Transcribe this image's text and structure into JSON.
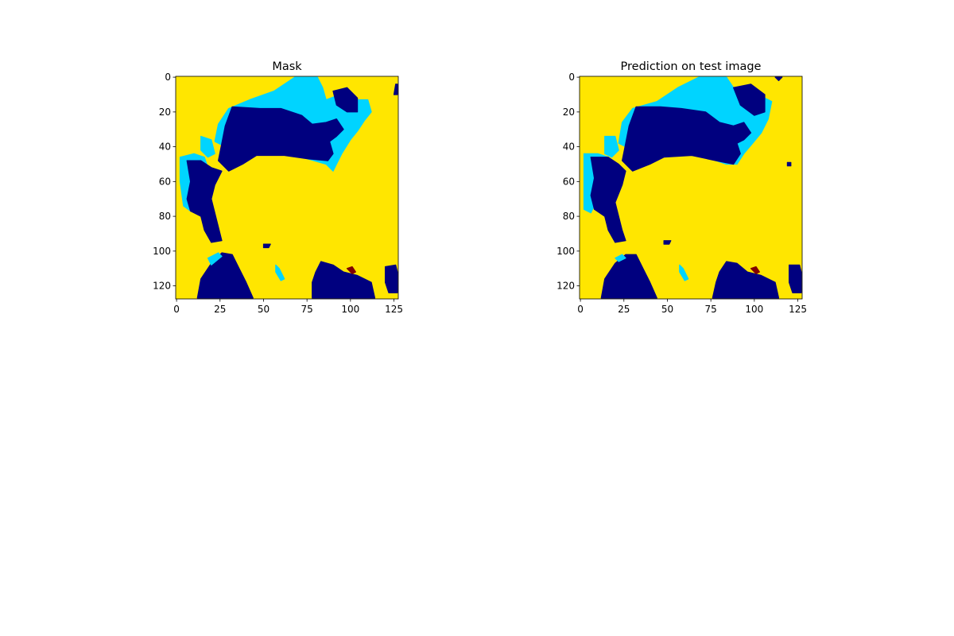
{
  "figure": {
    "background": "#ffffff"
  },
  "colors": {
    "background_class": "#ffe600",
    "water_light": "#00d4ff",
    "water_dark": "#00007f",
    "small_class": "#800000",
    "axes_edge": "#000000"
  },
  "chart_data": [
    {
      "type": "heatmap",
      "title": "Mask",
      "xlabel": "",
      "ylabel": "",
      "xlim": [
        0,
        127
      ],
      "ylim": [
        127,
        0
      ],
      "xticks": [
        0,
        25,
        50,
        75,
        100,
        125
      ],
      "yticks": [
        0,
        20,
        40,
        60,
        80,
        100,
        120
      ],
      "grid": false,
      "colormap": "jet",
      "regions": [
        {
          "class": "light",
          "points": [
            [
              42,
              13
            ],
            [
              56,
              8
            ],
            [
              68,
              0
            ],
            [
              81,
              0
            ],
            [
              84,
              6
            ],
            [
              86,
              13
            ],
            [
              99,
              8
            ],
            [
              104,
              13
            ],
            [
              110,
              13
            ],
            [
              112,
              20
            ],
            [
              108,
              25
            ],
            [
              104,
              31
            ],
            [
              100,
              36
            ],
            [
              95,
              44
            ],
            [
              92,
              50
            ],
            [
              90,
              54
            ],
            [
              86,
              50
            ],
            [
              72,
              46
            ],
            [
              58,
              44
            ],
            [
              41,
              43
            ],
            [
              30,
              41
            ],
            [
              22,
              37
            ],
            [
              24,
              27
            ],
            [
              30,
              18
            ]
          ]
        },
        {
          "class": "dark",
          "points": [
            [
              32,
              17
            ],
            [
              48,
              18
            ],
            [
              60,
              18
            ],
            [
              72,
              22
            ],
            [
              78,
              27
            ],
            [
              86,
              26
            ],
            [
              92,
              24
            ],
            [
              96,
              30
            ],
            [
              92,
              34
            ],
            [
              88,
              37
            ],
            [
              90,
              44
            ],
            [
              87,
              48
            ],
            [
              76,
              47
            ],
            [
              62,
              45
            ],
            [
              46,
              45
            ],
            [
              38,
              50
            ],
            [
              30,
              54
            ],
            [
              24,
              48
            ],
            [
              26,
              38
            ],
            [
              28,
              28
            ]
          ]
        },
        {
          "class": "dark",
          "points": [
            [
              90,
              8
            ],
            [
              98,
              6
            ],
            [
              104,
              12
            ],
            [
              104,
              20
            ],
            [
              98,
              20
            ],
            [
              92,
              16
            ]
          ]
        },
        {
          "class": "dark",
          "points": [
            [
              126,
              4
            ],
            [
              127,
              4
            ],
            [
              127,
              10
            ],
            [
              125,
              10
            ]
          ]
        },
        {
          "class": "light",
          "points": [
            [
              2,
              46
            ],
            [
              10,
              44
            ],
            [
              16,
              46
            ],
            [
              18,
              52
            ],
            [
              14,
              60
            ],
            [
              10,
              68
            ],
            [
              8,
              77
            ],
            [
              4,
              74
            ],
            [
              2,
              60
            ]
          ]
        },
        {
          "class": "light",
          "points": [
            [
              14,
              34
            ],
            [
              20,
              36
            ],
            [
              22,
              44
            ],
            [
              18,
              46
            ],
            [
              14,
              42
            ]
          ]
        },
        {
          "class": "dark",
          "points": [
            [
              6,
              48
            ],
            [
              14,
              48
            ],
            [
              20,
              52
            ],
            [
              26,
              54
            ],
            [
              22,
              62
            ],
            [
              20,
              70
            ],
            [
              22,
              78
            ],
            [
              24,
              86
            ],
            [
              26,
              94
            ],
            [
              20,
              95
            ],
            [
              16,
              88
            ],
            [
              14,
              80
            ],
            [
              8,
              77
            ],
            [
              6,
              70
            ],
            [
              8,
              60
            ]
          ]
        },
        {
          "class": "dark",
          "points": [
            [
              26,
              101
            ],
            [
              32,
              102
            ],
            [
              36,
              110
            ],
            [
              40,
              118
            ],
            [
              44,
              127
            ],
            [
              12,
              127
            ],
            [
              14,
              116
            ],
            [
              20,
              107
            ]
          ]
        },
        {
          "class": "light",
          "points": [
            [
              18,
              104
            ],
            [
              24,
              101
            ],
            [
              26,
              103
            ],
            [
              20,
              108
            ]
          ]
        },
        {
          "class": "dark",
          "points": [
            [
              83,
              106
            ],
            [
              90,
              108
            ],
            [
              96,
              112
            ],
            [
              104,
              114
            ],
            [
              112,
              118
            ],
            [
              114,
              127
            ],
            [
              78,
              127
            ],
            [
              78,
              118
            ],
            [
              80,
              112
            ]
          ]
        },
        {
          "class": "dark",
          "points": [
            [
              120,
              109
            ],
            [
              126,
              108
            ],
            [
              127,
              112
            ],
            [
              127,
              124
            ],
            [
              122,
              124
            ],
            [
              120,
              118
            ]
          ]
        },
        {
          "class": "dark",
          "points": [
            [
              50,
              96
            ],
            [
              54,
              96
            ],
            [
              53,
              98
            ],
            [
              50,
              98
            ]
          ]
        },
        {
          "class": "light",
          "points": [
            [
              57,
              108
            ],
            [
              59,
              110
            ],
            [
              62,
              116
            ],
            [
              60,
              117
            ],
            [
              57,
              112
            ]
          ]
        },
        {
          "class": "small",
          "points": [
            [
              98,
              110
            ],
            [
              101,
              109
            ],
            [
              103,
              112
            ],
            [
              101,
              113
            ]
          ]
        }
      ]
    },
    {
      "type": "heatmap",
      "title": "Prediction on test image",
      "xlabel": "",
      "ylabel": "",
      "xlim": [
        0,
        127
      ],
      "ylim": [
        127,
        0
      ],
      "xticks": [
        0,
        25,
        50,
        75,
        100,
        125
      ],
      "yticks": [
        0,
        20,
        40,
        60,
        80,
        100,
        120
      ],
      "grid": false,
      "colormap": "jet",
      "regions": [
        {
          "class": "light",
          "points": [
            [
              44,
              14
            ],
            [
              56,
              6
            ],
            [
              68,
              0
            ],
            [
              84,
              0
            ],
            [
              88,
              6
            ],
            [
              92,
              8
            ],
            [
              100,
              6
            ],
            [
              106,
              12
            ],
            [
              110,
              14
            ],
            [
              108,
              24
            ],
            [
              104,
              32
            ],
            [
              99,
              38
            ],
            [
              94,
              44
            ],
            [
              90,
              50
            ],
            [
              84,
              50
            ],
            [
              72,
              46
            ],
            [
              56,
              44
            ],
            [
              42,
              44
            ],
            [
              30,
              42
            ],
            [
              22,
              38
            ],
            [
              24,
              26
            ],
            [
              30,
              18
            ]
          ]
        },
        {
          "class": "dark",
          "points": [
            [
              32,
              17
            ],
            [
              46,
              17
            ],
            [
              58,
              18
            ],
            [
              72,
              20
            ],
            [
              80,
              26
            ],
            [
              88,
              28
            ],
            [
              94,
              26
            ],
            [
              98,
              32
            ],
            [
              94,
              36
            ],
            [
              90,
              38
            ],
            [
              92,
              44
            ],
            [
              88,
              50
            ],
            [
              78,
              48
            ],
            [
              64,
              45
            ],
            [
              48,
              46
            ],
            [
              40,
              50
            ],
            [
              30,
              54
            ],
            [
              24,
              48
            ],
            [
              26,
              38
            ],
            [
              28,
              28
            ]
          ]
        },
        {
          "class": "dark",
          "points": [
            [
              88,
              6
            ],
            [
              98,
              4
            ],
            [
              106,
              10
            ],
            [
              106,
              20
            ],
            [
              100,
              22
            ],
            [
              92,
              16
            ]
          ]
        },
        {
          "class": "dark",
          "points": [
            [
              112,
              0
            ],
            [
              116,
              0
            ],
            [
              114,
              2
            ]
          ]
        },
        {
          "class": "dark",
          "points": [
            [
              119,
              49
            ],
            [
              121,
              49
            ],
            [
              121,
              51
            ],
            [
              119,
              51
            ]
          ]
        },
        {
          "class": "light",
          "points": [
            [
              2,
              44
            ],
            [
              10,
              44
            ],
            [
              16,
              46
            ],
            [
              18,
              52
            ],
            [
              14,
              62
            ],
            [
              10,
              70
            ],
            [
              6,
              78
            ],
            [
              2,
              76
            ]
          ]
        },
        {
          "class": "light",
          "points": [
            [
              14,
              34
            ],
            [
              20,
              34
            ],
            [
              22,
              42
            ],
            [
              18,
              46
            ],
            [
              14,
              44
            ]
          ]
        },
        {
          "class": "dark",
          "points": [
            [
              6,
              46
            ],
            [
              16,
              46
            ],
            [
              22,
              50
            ],
            [
              26,
              54
            ],
            [
              24,
              62
            ],
            [
              20,
              72
            ],
            [
              22,
              80
            ],
            [
              24,
              88
            ],
            [
              26,
              94
            ],
            [
              20,
              95
            ],
            [
              16,
              88
            ],
            [
              14,
              80
            ],
            [
              8,
              76
            ],
            [
              6,
              68
            ],
            [
              8,
              58
            ]
          ]
        },
        {
          "class": "dark",
          "points": [
            [
              26,
              102
            ],
            [
              32,
              102
            ],
            [
              36,
              110
            ],
            [
              40,
              118
            ],
            [
              44,
              127
            ],
            [
              12,
              127
            ],
            [
              14,
              116
            ],
            [
              20,
              107
            ]
          ]
        },
        {
          "class": "light",
          "points": [
            [
              20,
              104
            ],
            [
              24,
              102
            ],
            [
              26,
              104
            ],
            [
              22,
              106
            ]
          ]
        },
        {
          "class": "dark",
          "points": [
            [
              84,
              106
            ],
            [
              90,
              107
            ],
            [
              96,
              112
            ],
            [
              104,
              114
            ],
            [
              112,
              118
            ],
            [
              114,
              127
            ],
            [
              76,
              127
            ],
            [
              78,
              118
            ],
            [
              80,
              112
            ]
          ]
        },
        {
          "class": "dark",
          "points": [
            [
              120,
              108
            ],
            [
              126,
              108
            ],
            [
              127,
              112
            ],
            [
              127,
              124
            ],
            [
              122,
              124
            ],
            [
              120,
              118
            ]
          ]
        },
        {
          "class": "dark",
          "points": [
            [
              48,
              94
            ],
            [
              52,
              94
            ],
            [
              51,
              96
            ],
            [
              48,
              96
            ]
          ]
        },
        {
          "class": "light",
          "points": [
            [
              57,
              108
            ],
            [
              59,
              110
            ],
            [
              62,
              116
            ],
            [
              60,
              117
            ],
            [
              57,
              112
            ]
          ]
        },
        {
          "class": "small",
          "points": [
            [
              98,
              110
            ],
            [
              101,
              109
            ],
            [
              103,
              112
            ],
            [
              101,
              113
            ]
          ]
        }
      ]
    }
  ]
}
